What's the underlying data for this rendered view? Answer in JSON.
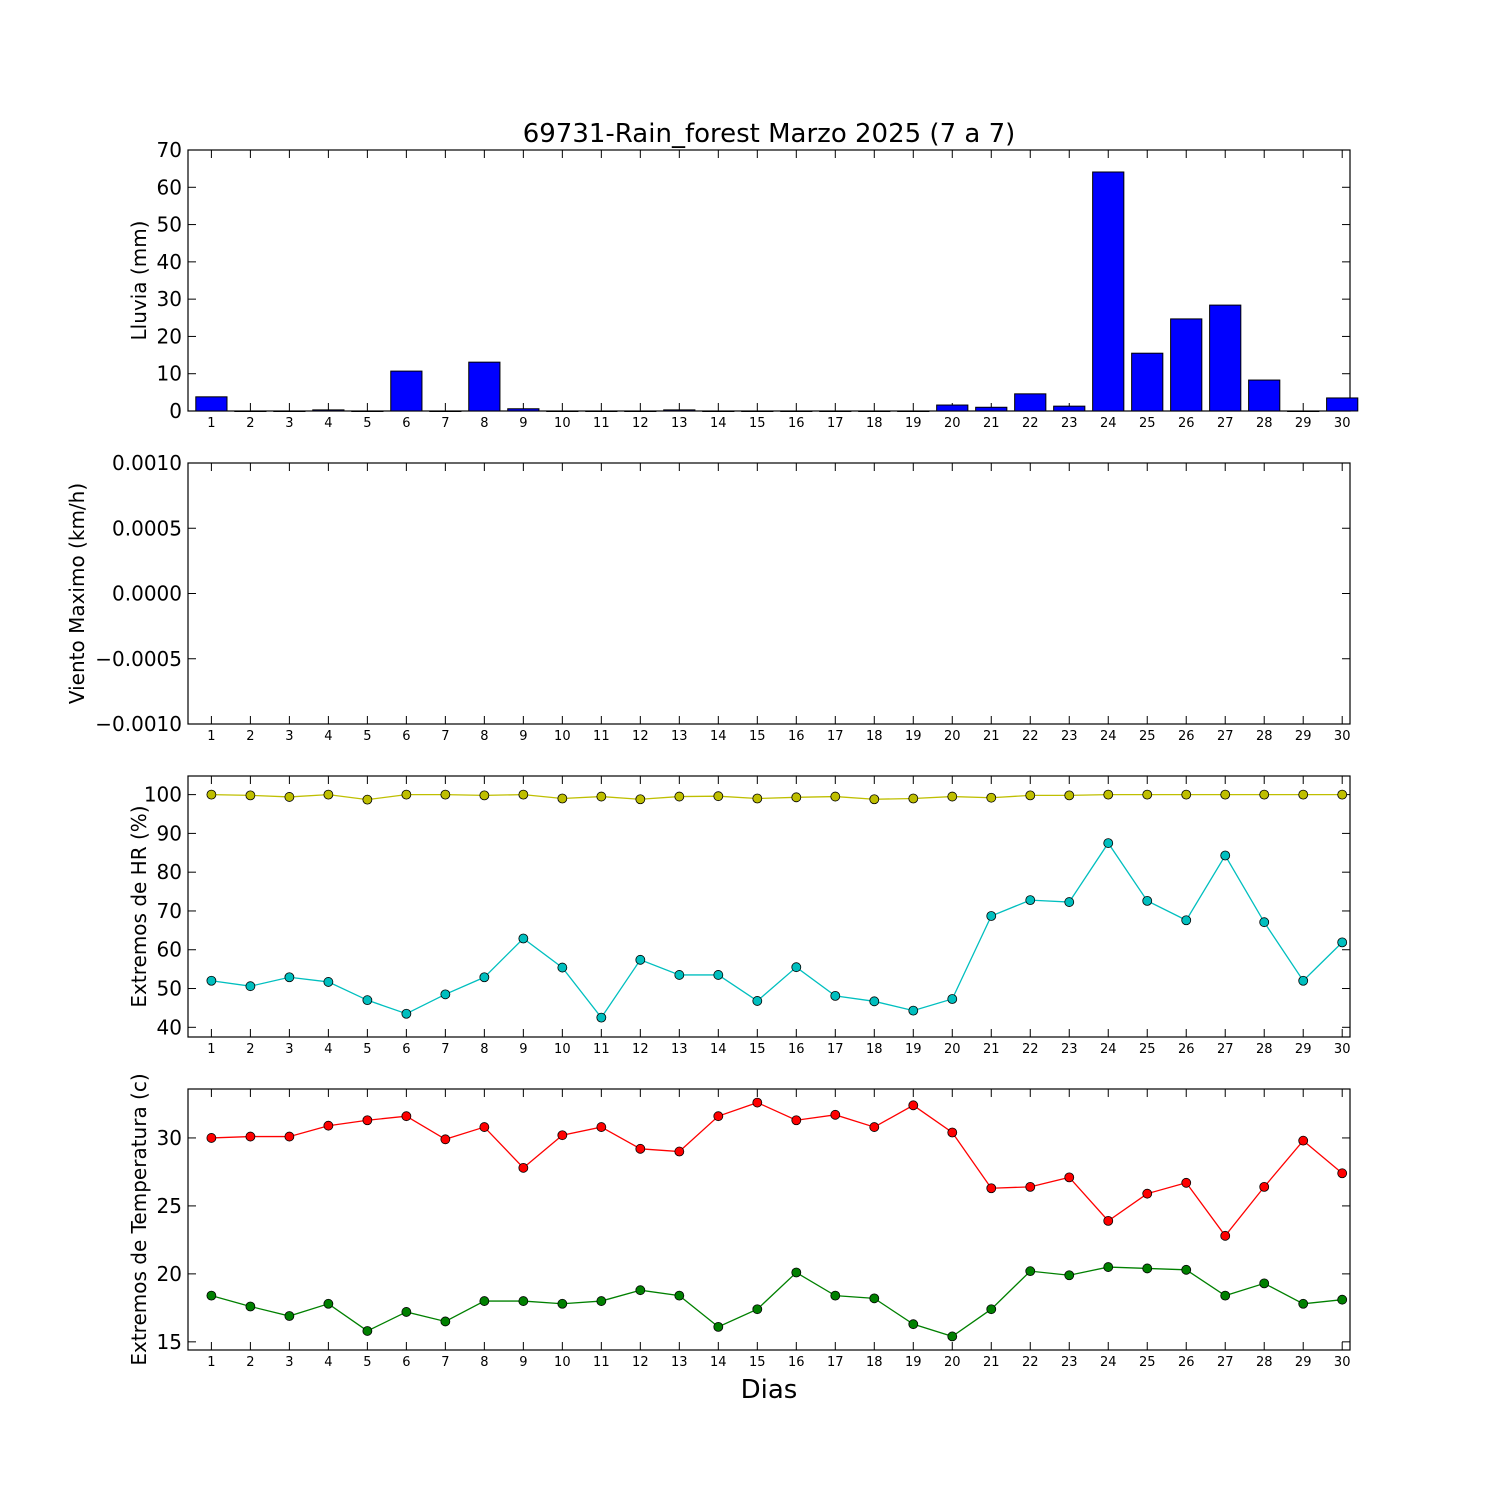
{
  "figure": {
    "title": "69731-Rain_forest Marzo 2025  (7 a 7)",
    "xlabel": "Dias"
  },
  "chart_data": [
    {
      "type": "bar",
      "ylabel": "Lluvia (mm)",
      "ylim": [
        0,
        70
      ],
      "yticks": [
        0,
        10,
        20,
        30,
        40,
        50,
        60,
        70
      ],
      "ytick_labels": [
        "0",
        "10",
        "20",
        "30",
        "40",
        "50",
        "60",
        "70"
      ],
      "categories": [
        "1",
        "2",
        "3",
        "4",
        "5",
        "6",
        "7",
        "8",
        "9",
        "10",
        "11",
        "12",
        "13",
        "14",
        "15",
        "16",
        "17",
        "18",
        "19",
        "20",
        "21",
        "22",
        "23",
        "24",
        "25",
        "26",
        "27",
        "28",
        "29",
        "30"
      ],
      "values": [
        3.8,
        0,
        0,
        0.3,
        0,
        10.7,
        0,
        13.1,
        0.6,
        0,
        0,
        0,
        0.3,
        0,
        0,
        0,
        0,
        0,
        0,
        1.6,
        1.0,
        4.6,
        1.3,
        64.1,
        15.5,
        24.7,
        28.4,
        8.3,
        0,
        3.5
      ],
      "colors": {
        "bar": "#0000ff",
        "edge": "#000000"
      }
    },
    {
      "type": "line",
      "ylabel": "Viento Maximo (km/h)",
      "ylim": [
        -0.001,
        0.001
      ],
      "yticks": [
        -0.001,
        -0.0005,
        0,
        0.0005,
        0.001
      ],
      "ytick_labels": [
        "−0.0010",
        "−0.0005",
        "0.0000",
        "0.0005",
        "0.0010"
      ],
      "categories": [
        "1",
        "2",
        "3",
        "4",
        "5",
        "6",
        "7",
        "8",
        "9",
        "10",
        "11",
        "12",
        "13",
        "14",
        "15",
        "16",
        "17",
        "18",
        "19",
        "20",
        "21",
        "22",
        "23",
        "24",
        "25",
        "26",
        "27",
        "28",
        "29",
        "30"
      ],
      "series": []
    },
    {
      "type": "line",
      "ylabel": "Extremos de HR (%)",
      "ylim": [
        37.5,
        104.8
      ],
      "yticks": [
        40,
        50,
        60,
        70,
        80,
        90,
        100
      ],
      "ytick_labels": [
        "40",
        "50",
        "60",
        "70",
        "80",
        "90",
        "100"
      ],
      "categories": [
        "1",
        "2",
        "3",
        "4",
        "5",
        "6",
        "7",
        "8",
        "9",
        "10",
        "11",
        "12",
        "13",
        "14",
        "15",
        "16",
        "17",
        "18",
        "19",
        "20",
        "21",
        "22",
        "23",
        "24",
        "25",
        "26",
        "27",
        "28",
        "29",
        "30"
      ],
      "series": [
        {
          "color": "#bfbf00",
          "values": [
            100,
            99.8,
            99.4,
            100,
            98.7,
            100,
            100,
            99.8,
            100,
            99,
            99.5,
            98.8,
            99.5,
            99.6,
            99,
            99.3,
            99.5,
            98.8,
            99,
            99.5,
            99.2,
            99.8,
            99.8,
            100,
            100,
            100,
            100,
            100,
            100,
            100
          ]
        },
        {
          "color": "#00bfbf",
          "values": [
            52,
            50.6,
            52.9,
            51.7,
            47,
            43.5,
            48.5,
            52.9,
            62.9,
            55.4,
            42.5,
            57.4,
            53.5,
            53.5,
            46.8,
            55.5,
            48.1,
            46.7,
            44.3,
            47.3,
            68.7,
            72.8,
            72.3,
            87.5,
            72.6,
            67.6,
            84.3,
            67.1,
            52,
            61.9
          ]
        }
      ]
    },
    {
      "type": "line",
      "ylabel": "Extremos de Temperatura (c)",
      "ylim": [
        14.4,
        33.6
      ],
      "yticks": [
        15,
        20,
        25,
        30
      ],
      "ytick_labels": [
        "15",
        "20",
        "25",
        "30"
      ],
      "categories": [
        "1",
        "2",
        "3",
        "4",
        "5",
        "6",
        "7",
        "8",
        "9",
        "10",
        "11",
        "12",
        "13",
        "14",
        "15",
        "16",
        "17",
        "18",
        "19",
        "20",
        "21",
        "22",
        "23",
        "24",
        "25",
        "26",
        "27",
        "28",
        "29",
        "30"
      ],
      "series": [
        {
          "color": "#ff0000",
          "values": [
            30,
            30.1,
            30.1,
            30.9,
            31.3,
            31.6,
            29.9,
            30.8,
            27.8,
            30.2,
            30.8,
            29.2,
            29,
            31.6,
            32.6,
            31.3,
            31.7,
            30.8,
            32.4,
            30.4,
            26.3,
            26.4,
            27.1,
            23.9,
            25.9,
            26.7,
            22.8,
            26.4,
            29.8,
            27.4
          ]
        },
        {
          "color": "#008000",
          "values": [
            18.4,
            17.6,
            16.9,
            17.8,
            15.8,
            17.2,
            16.5,
            18,
            18,
            17.8,
            18,
            18.8,
            18.4,
            16.1,
            17.4,
            20.1,
            18.4,
            18.2,
            16.3,
            15.4,
            17.4,
            20.2,
            19.9,
            20.5,
            20.4,
            20.3,
            18.4,
            19.3,
            17.8,
            18.1
          ]
        }
      ]
    }
  ]
}
